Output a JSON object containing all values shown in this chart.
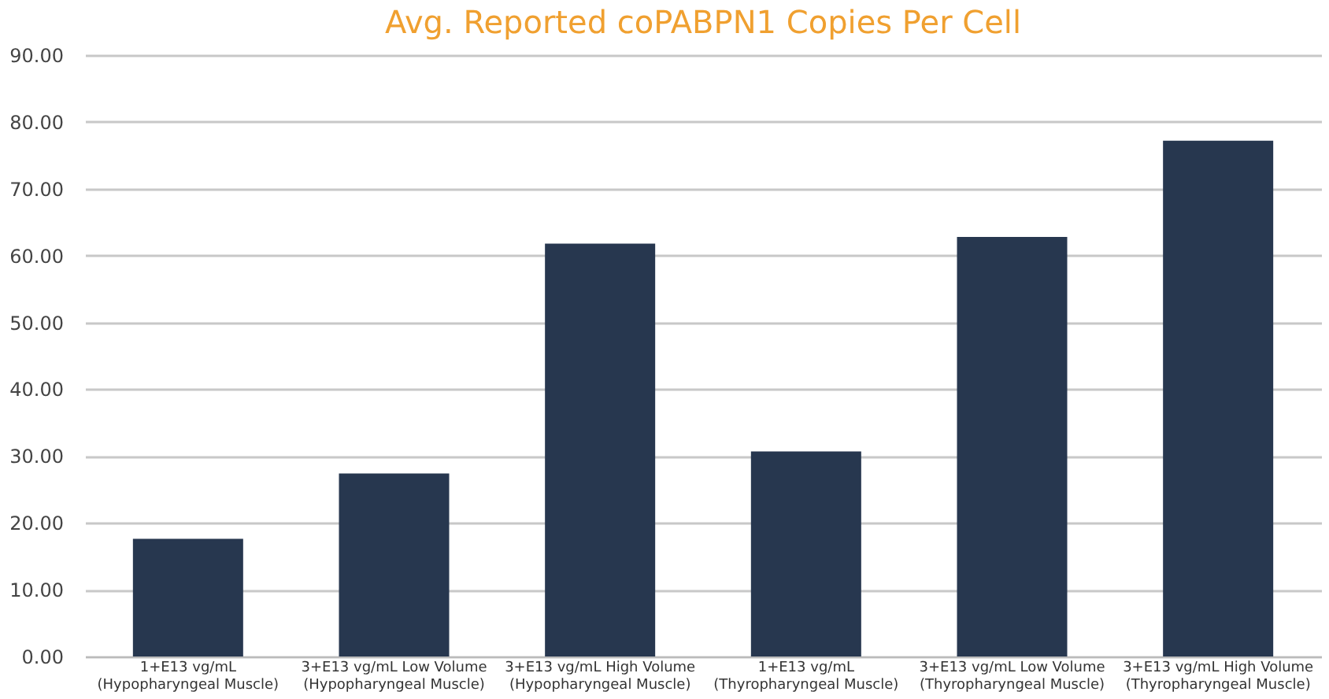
{
  "chart_data": {
    "type": "bar",
    "title": "Avg. Reported coPABPN1 Copies Per Cell",
    "categories": [
      "1+E13 vg/mL\n(Hypopharyngeal Muscle)",
      "3+E13 vg/mL Low Volume\n(Hypopharyngeal Muscle)",
      "3+E13 vg/mL High Volume\n(Hypopharyngeal Muscle)",
      "1+E13 vg/mL\n(Thyropharyngeal Muscle)",
      "3+E13 vg/mL Low Volume\n(Thyropharyngeal Muscle)",
      "3+E13 vg/mL High Volume\n(Thyropharyngeal Muscle)"
    ],
    "values": [
      17.6,
      27.4,
      61.8,
      30.7,
      62.8,
      77.2
    ],
    "color": "#27374f",
    "ylim": [
      0,
      90
    ],
    "yticks": [
      {
        "value": 0,
        "label": "0.00"
      },
      {
        "value": 10,
        "label": "10.00"
      },
      {
        "value": 20,
        "label": "20.00"
      },
      {
        "value": 30,
        "label": "30.00"
      },
      {
        "value": 40,
        "label": "40.00"
      },
      {
        "value": 50,
        "label": "50.00"
      },
      {
        "value": 60,
        "label": "60.00"
      },
      {
        "value": 70,
        "label": "70.00"
      },
      {
        "value": 80,
        "label": "80.00"
      },
      {
        "value": 90,
        "label": "90.00"
      }
    ],
    "grid": "y"
  }
}
